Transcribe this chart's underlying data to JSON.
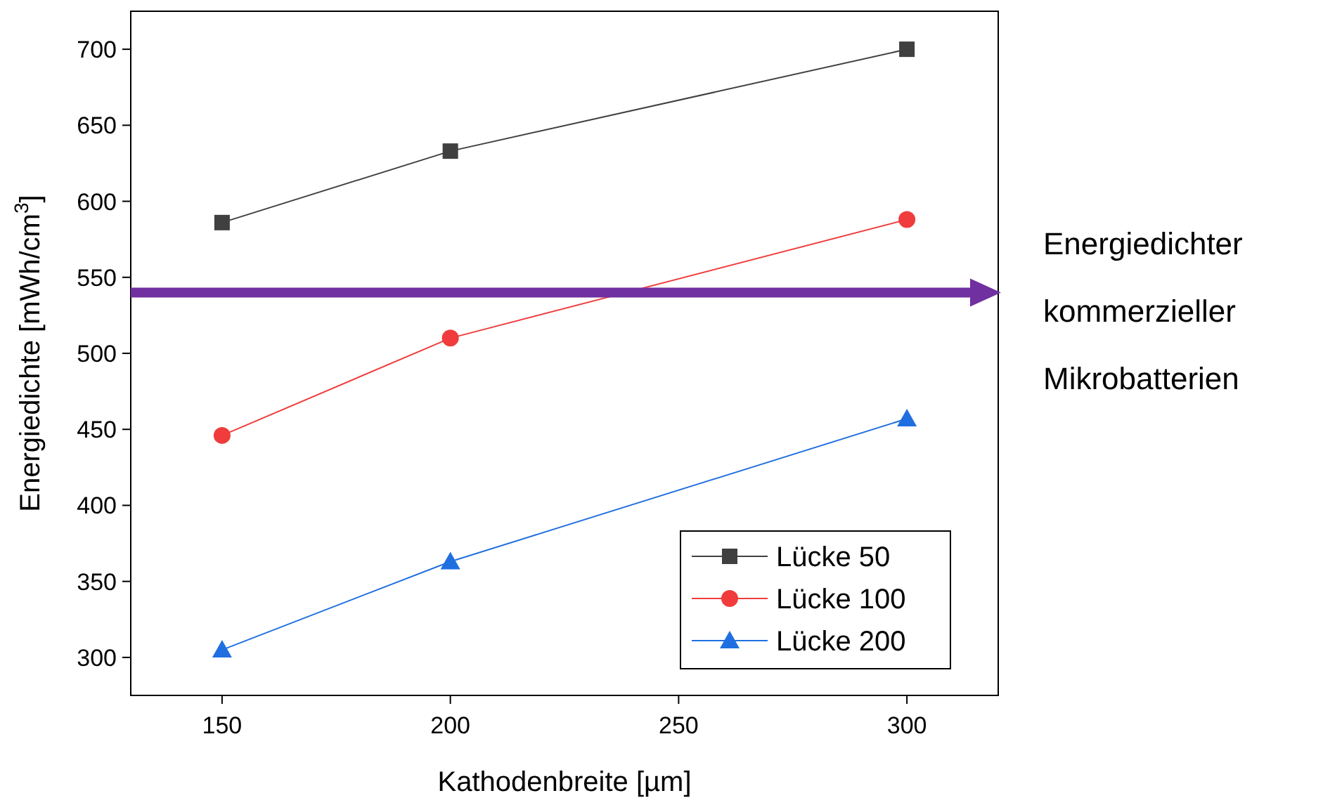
{
  "chart_data": {
    "type": "line",
    "xlabel": "Kathodenbreite [µm]",
    "ylabel": "Energiedichte [mWh/cm$^{3}$]",
    "x": [
      150,
      200,
      300
    ],
    "xlim": [
      130,
      320
    ],
    "xticks": [
      150,
      200,
      250,
      300
    ],
    "ylim": [
      275,
      725
    ],
    "yticks": [
      300,
      350,
      400,
      450,
      500,
      550,
      600,
      650,
      700
    ],
    "series": [
      {
        "name": "Lücke 50",
        "color": "#404040",
        "marker": "square",
        "values": [
          586,
          633,
          700
        ]
      },
      {
        "name": "Lücke 100",
        "color": "#f03c3c",
        "marker": "circle",
        "values": [
          446,
          510,
          588
        ]
      },
      {
        "name": "Lücke 200",
        "color": "#1f6fe0",
        "marker": "triangle",
        "values": [
          305,
          363,
          457
        ]
      }
    ],
    "ref_lines": [
      {
        "axis": "y",
        "value": 540,
        "label": "Energiedichter kommerzieller Mikrobatterien",
        "color": "#7030a0"
      }
    ],
    "legend": "bottom right",
    "grid": false,
    "line_style": "solid"
  }
}
